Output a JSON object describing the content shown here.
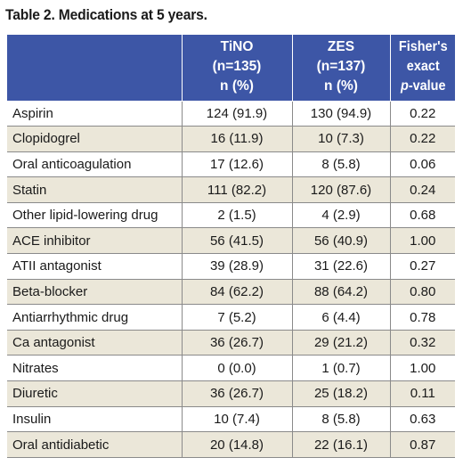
{
  "caption": "Table 2. Medications at 5 years.",
  "headers": {
    "col0": "",
    "col1": [
      "TiNO",
      "(n=135)",
      "n (%)"
    ],
    "col2": [
      "ZES",
      "(n=137)",
      "n (%)"
    ],
    "col3": [
      "Fisher's",
      "exact",
      "p",
      "-value"
    ]
  },
  "rows": [
    [
      "Aspirin",
      "124 (91.9)",
      "130 (94.9)",
      "0.22"
    ],
    [
      "Clopidogrel",
      "16 (11.9)",
      "10 (7.3)",
      "0.22"
    ],
    [
      "Oral anticoagulation",
      "17 (12.6)",
      "8 (5.8)",
      "0.06"
    ],
    [
      "Statin",
      "111 (82.2)",
      "120 (87.6)",
      "0.24"
    ],
    [
      "Other lipid-lowering drug",
      "2 (1.5)",
      "4 (2.9)",
      "0.68"
    ],
    [
      "ACE inhibitor",
      "56 (41.5)",
      "56 (40.9)",
      "1.00"
    ],
    [
      "ATII antagonist",
      "39 (28.9)",
      "31 (22.6)",
      "0.27"
    ],
    [
      "Beta-blocker",
      "84 (62.2)",
      "88 (64.2)",
      "0.80"
    ],
    [
      "Antiarrhythmic drug",
      "7 (5.2)",
      "6 (4.4)",
      "0.78"
    ],
    [
      "Ca antagonist",
      "36 (26.7)",
      "29 (21.2)",
      "0.32"
    ],
    [
      "Nitrates",
      "0 (0.0)",
      "1 (0.7)",
      "1.00"
    ],
    [
      "Diuretic",
      "36 (26.7)",
      "25 (18.2)",
      "0.11"
    ],
    [
      "Insulin",
      "10 (7.4)",
      "8 (5.8)",
      "0.63"
    ],
    [
      "Oral antidiabetic",
      "20 (14.8)",
      "22 (16.1)",
      "0.87"
    ]
  ],
  "colors": {
    "header_bg": "#3d56a6",
    "stripe_bg": "#ebe7d9"
  }
}
